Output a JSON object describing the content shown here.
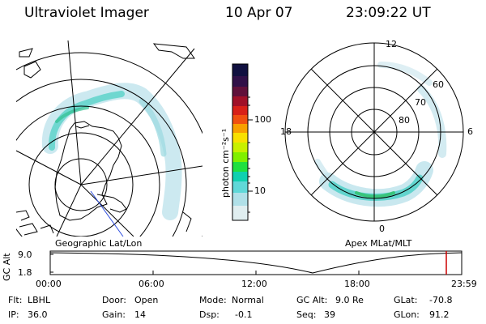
{
  "header": {
    "title": "Ultraviolet Imager",
    "date": "10 Apr 07",
    "time": "23:09:22 UT"
  },
  "left_panel": {
    "caption": "Geographic Lat/Lon"
  },
  "right_panel": {
    "caption": "Apex MLat/MLT",
    "mlt_labels": [
      "12",
      "18",
      "6",
      "0"
    ],
    "lat_labels": [
      "60",
      "70",
      "80"
    ]
  },
  "colorbar": {
    "unit_label": "photon cm⁻²s⁻¹",
    "tick_labels": [
      "100",
      "10"
    ],
    "scale": "log",
    "colors": [
      "#101040",
      "#301048",
      "#60103a",
      "#a01028",
      "#d82018",
      "#f05010",
      "#f8a000",
      "#f8e000",
      "#c8f000",
      "#80f000",
      "#20e040",
      "#10d0b0",
      "#60d8d8",
      "#b0e0e8",
      "#e0eef0"
    ]
  },
  "timeline": {
    "axis_label": "GC Alt",
    "y_ticks": [
      "9.0",
      "1.8"
    ],
    "x_ticks": [
      "00:00",
      "06:00",
      "12:00",
      "18:00",
      "23:59"
    ],
    "current_time_marker_color": "#cc0000"
  },
  "status": {
    "filter": {
      "label": "Flt:",
      "value": "LBHL"
    },
    "ip": {
      "label": "IP:",
      "value": "36.0"
    },
    "door": {
      "label": "Door:",
      "value": "Open"
    },
    "gain": {
      "label": "Gain:",
      "value": "14"
    },
    "mode": {
      "label": "Mode:",
      "value": "Normal"
    },
    "dsp": {
      "label": "Dsp:",
      "value": "-0.1"
    },
    "gc_alt": {
      "label": "GC Alt:",
      "value": "9.0 Re"
    },
    "seq": {
      "label": "Seq:",
      "value": "39"
    },
    "glat": {
      "label": "GLat:",
      "value": "-70.8"
    },
    "glon": {
      "label": "GLon:",
      "value": "91.2"
    }
  }
}
